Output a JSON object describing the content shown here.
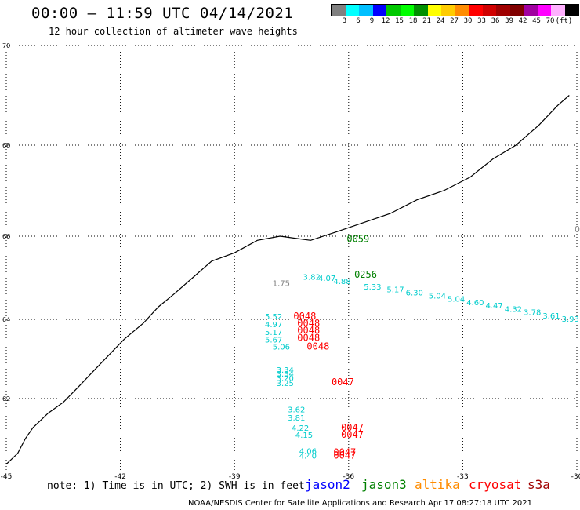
{
  "title": "00:00 – 11:59 UTC 04/14/2021",
  "subtitle": "12 hour collection of altimeter wave heights",
  "colorbar": {
    "colors": [
      "#808080",
      "#00ffff",
      "#00bfff",
      "#0000ff",
      "#00c800",
      "#00ff00",
      "#009000",
      "#ffff00",
      "#ffcc00",
      "#ff8c00",
      "#ff0000",
      "#d00000",
      "#a00000",
      "#800000",
      "#a000a0",
      "#ff00ff",
      "#ffb0ff",
      "#000000"
    ],
    "labels": [
      "3",
      "6",
      "9",
      "12",
      "15",
      "18",
      "21",
      "24",
      "27",
      "30",
      "33",
      "36",
      "39",
      "42",
      "45",
      "70",
      "(ft)"
    ]
  },
  "axes": {
    "lon_min": -45,
    "lon_max": -30,
    "lat_min": 60,
    "lat_max": 70,
    "lon_ticks": [
      -45,
      -42,
      -39,
      -36,
      -33,
      -30
    ],
    "lon_tick_labels": [
      "-45",
      "-42",
      "-39",
      "-36",
      "-33",
      "-30"
    ],
    "lat_ticks": [
      62,
      64,
      66,
      68,
      70
    ],
    "lat_tick_labels": [
      "62",
      "64",
      "66",
      "68",
      "70"
    ]
  },
  "coastline": [
    [
      -45,
      60.2
    ],
    [
      -44.7,
      60.5
    ],
    [
      -44.5,
      60.9
    ],
    [
      -44.3,
      61.2
    ],
    [
      -43.9,
      61.6
    ],
    [
      -43.5,
      61.9
    ],
    [
      -43.1,
      62.3
    ],
    [
      -42.7,
      62.7
    ],
    [
      -42.3,
      63.1
    ],
    [
      -41.9,
      63.5
    ],
    [
      -41.4,
      63.9
    ],
    [
      -41.0,
      64.3
    ],
    [
      -40.6,
      64.6
    ],
    [
      -40.1,
      65.0
    ],
    [
      -39.6,
      65.4
    ],
    [
      -39.0,
      65.6
    ],
    [
      -38.4,
      65.9
    ],
    [
      -37.8,
      66.0
    ],
    [
      -37.0,
      65.9
    ],
    [
      -36.3,
      66.1
    ],
    [
      -35.6,
      66.3
    ],
    [
      -34.9,
      66.5
    ],
    [
      -34.2,
      66.8
    ],
    [
      -33.5,
      67.0
    ],
    [
      -32.8,
      67.3
    ],
    [
      -32.2,
      67.7
    ],
    [
      -31.6,
      68.0
    ],
    [
      -31.0,
      68.4
    ],
    [
      -30.5,
      68.8
    ],
    [
      -30.2,
      69.0
    ]
  ],
  "observations": [
    {
      "lon": -38.0,
      "lat": 64.8,
      "text": "1.75",
      "color": "#808080"
    },
    {
      "lon": -37.2,
      "lat": 64.95,
      "text": "3.82",
      "color": "#00cccc"
    },
    {
      "lon": -36.8,
      "lat": 64.92,
      "text": "4.07",
      "color": "#00cccc"
    },
    {
      "lon": -36.4,
      "lat": 64.85,
      "text": "4.88",
      "color": "#00cccc"
    },
    {
      "lon": -35.6,
      "lat": 64.72,
      "text": "5.33",
      "color": "#00cccc"
    },
    {
      "lon": -35.0,
      "lat": 64.65,
      "text": "5.17",
      "color": "#00cccc"
    },
    {
      "lon": -34.5,
      "lat": 64.58,
      "text": "6.30",
      "color": "#00cccc"
    },
    {
      "lon": -33.9,
      "lat": 64.5,
      "text": "5.04",
      "color": "#00cccc"
    },
    {
      "lon": -33.4,
      "lat": 64.42,
      "text": "5.04",
      "color": "#00cccc"
    },
    {
      "lon": -32.9,
      "lat": 64.34,
      "text": "4.60",
      "color": "#00cccc"
    },
    {
      "lon": -32.4,
      "lat": 64.26,
      "text": "4.47",
      "color": "#00cccc"
    },
    {
      "lon": -31.9,
      "lat": 64.18,
      "text": "4.32",
      "color": "#00cccc"
    },
    {
      "lon": -31.4,
      "lat": 64.1,
      "text": "3.78",
      "color": "#00cccc"
    },
    {
      "lon": -30.9,
      "lat": 64.02,
      "text": "3.61",
      "color": "#00cccc"
    },
    {
      "lon": -30.4,
      "lat": 63.94,
      "text": "3.93",
      "color": "#00cccc"
    },
    {
      "lon": -29.9,
      "lat": 63.86,
      "text": "3.85",
      "color": "#00cccc"
    },
    {
      "lon": -38.2,
      "lat": 64.0,
      "text": "5.52",
      "color": "#00cccc"
    },
    {
      "lon": -38.2,
      "lat": 63.8,
      "text": "4.97",
      "color": "#00cccc"
    },
    {
      "lon": -38.2,
      "lat": 63.6,
      "text": "5.17",
      "color": "#00cccc"
    },
    {
      "lon": -38.2,
      "lat": 63.42,
      "text": "5.67",
      "color": "#00cccc"
    },
    {
      "lon": -38.0,
      "lat": 63.24,
      "text": "5.06",
      "color": "#00cccc"
    },
    {
      "lon": -37.9,
      "lat": 62.65,
      "text": "3.34",
      "color": "#00cccc"
    },
    {
      "lon": -37.9,
      "lat": 62.55,
      "text": "3.34",
      "color": "#00cccc"
    },
    {
      "lon": -37.9,
      "lat": 62.45,
      "text": "3.20",
      "color": "#00cccc"
    },
    {
      "lon": -37.9,
      "lat": 62.32,
      "text": "3.25",
      "color": "#00cccc"
    },
    {
      "lon": -37.6,
      "lat": 61.62,
      "text": "3.62",
      "color": "#00cccc"
    },
    {
      "lon": -37.6,
      "lat": 61.4,
      "text": "3.81",
      "color": "#00cccc"
    },
    {
      "lon": -37.5,
      "lat": 61.12,
      "text": "4.22",
      "color": "#00cccc"
    },
    {
      "lon": -37.4,
      "lat": 60.92,
      "text": "4.15",
      "color": "#00cccc"
    },
    {
      "lon": -37.3,
      "lat": 60.48,
      "text": "4.06",
      "color": "#00cccc"
    },
    {
      "lon": -37.3,
      "lat": 60.36,
      "text": "4.40",
      "color": "#00cccc"
    }
  ],
  "time_labels": [
    {
      "lon": -36.05,
      "lat": 65.86,
      "text": "0059",
      "color": "#008000"
    },
    {
      "lon": -35.85,
      "lat": 65.0,
      "text": "0256",
      "color": "#008000"
    },
    {
      "lon": -37.45,
      "lat": 64.0,
      "text": "0048",
      "color": "#ff0000"
    },
    {
      "lon": -37.35,
      "lat": 63.82,
      "text": "0048",
      "color": "#ff0000"
    },
    {
      "lon": -37.35,
      "lat": 63.64,
      "text": "0048",
      "color": "#ff0000"
    },
    {
      "lon": -37.35,
      "lat": 63.46,
      "text": "0048",
      "color": "#ff0000"
    },
    {
      "lon": -37.1,
      "lat": 63.24,
      "text": "0048",
      "color": "#ff0000"
    },
    {
      "lon": -36.45,
      "lat": 62.34,
      "text": "0047",
      "color": "#ff0000"
    },
    {
      "lon": -36.2,
      "lat": 61.12,
      "text": "0047",
      "color": "#ff0000"
    },
    {
      "lon": -36.2,
      "lat": 60.92,
      "text": "0047",
      "color": "#ff0000"
    },
    {
      "lon": -36.4,
      "lat": 60.44,
      "text": "0047",
      "color": "#ff0000"
    },
    {
      "lon": -36.4,
      "lat": 60.36,
      "text": "0047",
      "color": "#ff0000"
    }
  ],
  "edge_label": {
    "text": "0",
    "color": "#808080"
  },
  "note": "note: 1) Time is in UTC; 2) SWH is in feet",
  "satellites": [
    {
      "name": "jason2",
      "color": "#0000ff"
    },
    {
      "name": "jason3",
      "color": "#008000"
    },
    {
      "name": "altika",
      "color": "#ff8c00"
    },
    {
      "name": "cryosat",
      "color": "#ff0000"
    },
    {
      "name": "s3a",
      "color": "#a00000"
    }
  ],
  "footer": "NOAA/NESDIS Center for Satellite Applications and Research    Apr 17 08:27:18 UTC 2021"
}
